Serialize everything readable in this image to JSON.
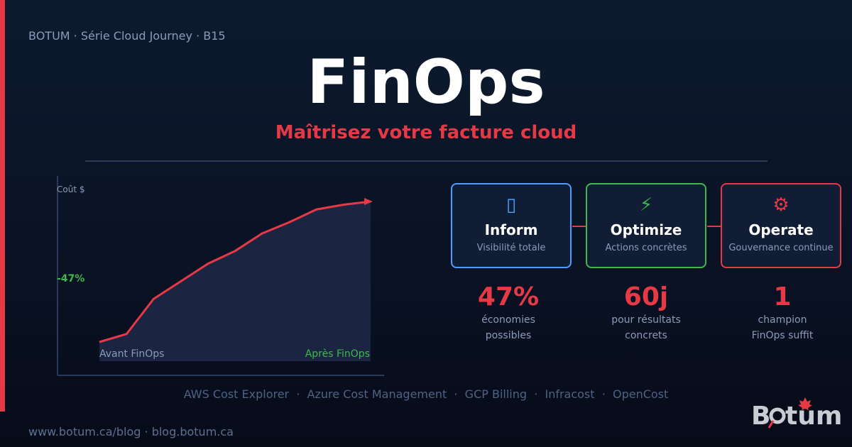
{
  "header": {
    "series": "BOTUM · Série Cloud Journey · B15",
    "title": "FinOps",
    "subtitle": "Maîtrisez votre facture cloud"
  },
  "chart_data": {
    "type": "area",
    "ylabel": "Coût $",
    "annotation": "-47%",
    "start_label": "Avant FinOps",
    "end_label": "Après FinOps",
    "values": [
      12,
      17,
      39,
      50,
      61,
      69,
      80,
      87,
      95,
      98,
      100
    ],
    "ylim": [
      0,
      100
    ],
    "line_color": "#e63946",
    "fill_color": "#1b2542"
  },
  "pillars": [
    {
      "icon": "chart-icon",
      "glyph": "▯",
      "name": "Inform",
      "desc": "Visibilité totale",
      "color": "#4a9eff"
    },
    {
      "icon": "lightning-icon",
      "glyph": "⚡",
      "name": "Optimize",
      "desc": "Actions concrètes",
      "color": "#3cb94a"
    },
    {
      "icon": "gear-icon",
      "glyph": "⚙",
      "name": "Operate",
      "desc": "Gouvernance continue",
      "color": "#e63946"
    }
  ],
  "stats": [
    {
      "value": "47%",
      "line1": "économies",
      "line2": "possibles"
    },
    {
      "value": "60j",
      "line1": "pour résultats",
      "line2": "concrets"
    },
    {
      "value": "1",
      "line1": "champion",
      "line2": "FinOps suffit"
    }
  ],
  "tools": "AWS Cost Explorer  ·  Azure Cost Management  ·  GCP Billing  ·  Infracost  ·  OpenCost",
  "footer": "www.botum.ca/blog  ·  blog.botum.ca",
  "logo": {
    "text": "Botum",
    "accent": "#e63946"
  }
}
